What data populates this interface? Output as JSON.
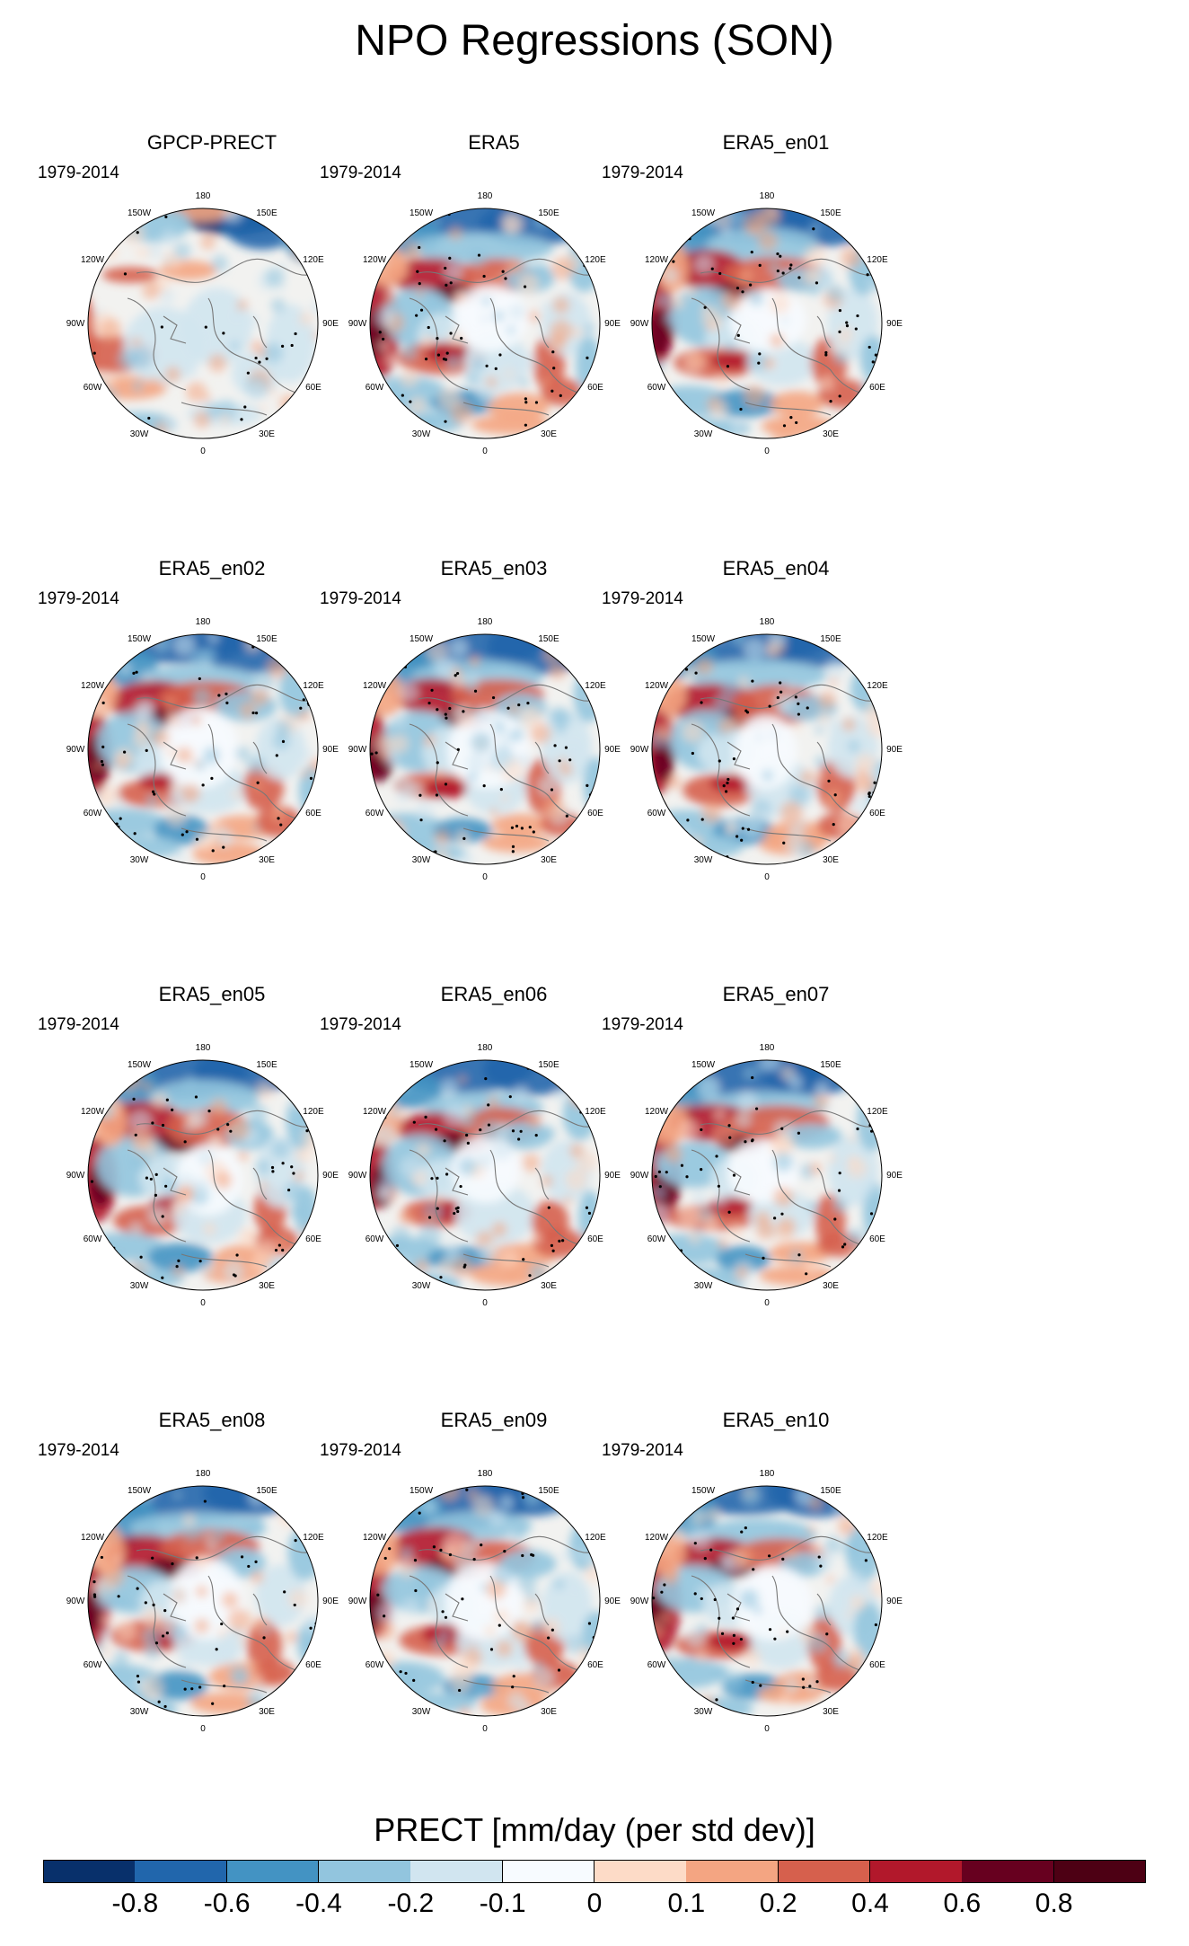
{
  "title": "NPO Regressions (SON)",
  "period": "1979-2014",
  "lon_labels": [
    "180",
    "150E",
    "120E",
    "90E",
    "60E",
    "30E",
    "0",
    "30W",
    "60W",
    "90W",
    "120W",
    "150W"
  ],
  "chart_data": {
    "type": "heatmap",
    "projection": "north-polar-stereographic",
    "variable": "PRECT",
    "units": "mm/day (per std dev)",
    "colorbar_label": "PRECT [mm/day (per std dev)]",
    "levels": [
      "-0.8",
      "-0.6",
      "-0.4",
      "-0.2",
      "-0.1",
      "0",
      "0.1",
      "0.2",
      "0.4",
      "0.6",
      "0.8"
    ],
    "colors": [
      "#08306b",
      "#2166ac",
      "#4393c3",
      "#92c5de",
      "#d1e5f0",
      "#f7fbff",
      "#fddbc7",
      "#f4a582",
      "#d6604d",
      "#b2182b",
      "#67001f",
      "#4d0014"
    ],
    "panels": [
      {
        "name": "GPCP-PRECT",
        "period": "1979-2014"
      },
      {
        "name": "ERA5",
        "period": "1979-2014"
      },
      {
        "name": "ERA5_en01",
        "period": "1979-2014"
      },
      {
        "name": "ERA5_en02",
        "period": "1979-2014"
      },
      {
        "name": "ERA5_en03",
        "period": "1979-2014"
      },
      {
        "name": "ERA5_en04",
        "period": "1979-2014"
      },
      {
        "name": "ERA5_en05",
        "period": "1979-2014"
      },
      {
        "name": "ERA5_en06",
        "period": "1979-2014"
      },
      {
        "name": "ERA5_en07",
        "period": "1979-2014"
      },
      {
        "name": "ERA5_en08",
        "period": "1979-2014"
      },
      {
        "name": "ERA5_en09",
        "period": "1979-2014"
      },
      {
        "name": "ERA5_en10",
        "period": "1979-2014"
      }
    ]
  }
}
